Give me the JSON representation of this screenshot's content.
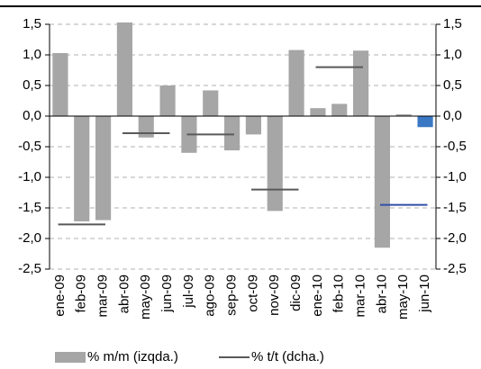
{
  "chart_data": {
    "type": "bar",
    "categories": [
      "ene-09",
      "feb-09",
      "mar-09",
      "abr-09",
      "may-09",
      "jun-09",
      "jul-09",
      "ago-09",
      "sep-09",
      "oct-09",
      "nov-09",
      "dic-09",
      "ene-10",
      "feb-10",
      "mar-10",
      "abr-10",
      "may-10",
      "jun-10"
    ],
    "series": [
      {
        "name": "% m/m (izqda.)",
        "type": "bar",
        "color": "#a6a6a6",
        "colors": [
          "#a6a6a6",
          "#a6a6a6",
          "#a6a6a6",
          "#a6a6a6",
          "#a6a6a6",
          "#a6a6a6",
          "#a6a6a6",
          "#a6a6a6",
          "#a6a6a6",
          "#a6a6a6",
          "#a6a6a6",
          "#a6a6a6",
          "#a6a6a6",
          "#a6a6a6",
          "#a6a6a6",
          "#a6a6a6",
          "#a6a6a6",
          "#3a78c4"
        ],
        "values": [
          1.03,
          -1.72,
          -1.7,
          1.53,
          -0.35,
          0.5,
          -0.6,
          0.42,
          -0.56,
          -0.3,
          -1.55,
          1.08,
          0.13,
          0.2,
          1.07,
          -2.15,
          0.03,
          -0.18
        ]
      },
      {
        "name": "% t/t (dcha.)",
        "type": "line",
        "axis": "y2",
        "color": "#595959",
        "colors": [
          null,
          "#595959",
          null,
          null,
          "#595959",
          null,
          null,
          "#595959",
          null,
          null,
          "#595959",
          null,
          null,
          "#595959",
          null,
          null,
          "#2f4fa8",
          null
        ],
        "values": [
          null,
          -1.77,
          null,
          null,
          -0.28,
          null,
          null,
          -0.3,
          null,
          null,
          -1.2,
          null,
          null,
          0.8,
          null,
          null,
          -1.45,
          null
        ]
      }
    ],
    "ylim": [
      -2.5,
      1.5
    ],
    "yticks": [
      {
        "value": 1.5,
        "label": "1,5"
      },
      {
        "value": 1.0,
        "label": "1,0"
      },
      {
        "value": 0.5,
        "label": "0,5"
      },
      {
        "value": 0,
        "label": "0,0"
      },
      {
        "value": -0.5,
        "label": "-0,5"
      },
      {
        "value": -1.0,
        "label": "-1,0"
      },
      {
        "value": -1.5,
        "label": "-1,5"
      },
      {
        "value": -2.0,
        "label": "-2,0"
      },
      {
        "value": -2.5,
        "label": "-2,5"
      }
    ],
    "y2lim": [
      -2.5,
      1.5
    ],
    "y2ticks": [
      {
        "value": 1.5,
        "label": "1,5"
      },
      {
        "value": 1.0,
        "label": "1,0"
      },
      {
        "value": 0.5,
        "label": "0,5"
      },
      {
        "value": 0,
        "label": "0,0"
      },
      {
        "value": -0.5,
        "label": "-0,5"
      },
      {
        "value": -1.0,
        "label": "-1,0"
      },
      {
        "value": -1.5,
        "label": "-1,5"
      },
      {
        "value": -2.0,
        "label": "-2,0"
      },
      {
        "value": -2.5,
        "label": "-2,5"
      }
    ],
    "grid": true
  }
}
